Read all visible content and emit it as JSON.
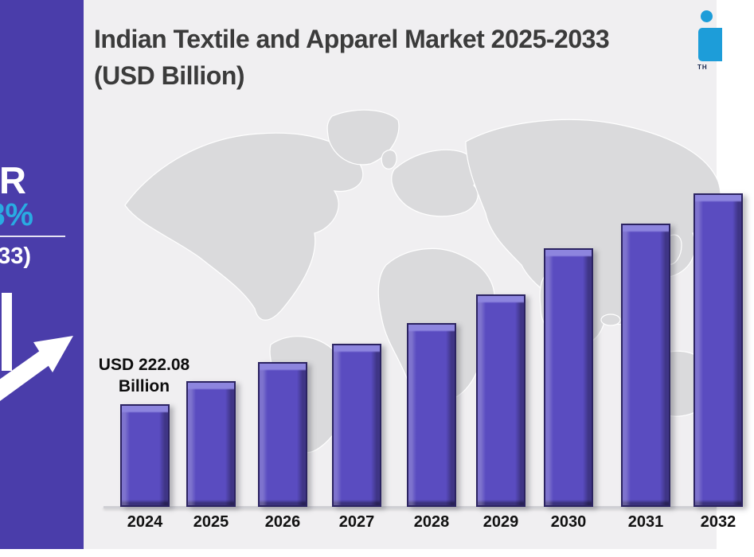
{
  "header": {
    "title": "Indian Textile and Apparel Market 2025-2033 (USD Billion)"
  },
  "sidebar": {
    "bg_color": "#4a3daa",
    "cagr_text_fragment": "R",
    "cagr_value_fragment": "8%",
    "cagr_value_color": "#29abe2",
    "period_fragment": "33)",
    "growth_arrow_color": "#ffffff"
  },
  "logo": {
    "color": "#1d9dd9",
    "text_fragment": "TH"
  },
  "annotation_2024": "USD 222.08 Billion",
  "chart_data": {
    "type": "bar",
    "title": "Indian Textile and Apparel Market 2025-2033 (USD Billion)",
    "unit": "USD Billion",
    "categories": [
      "2024",
      "2025",
      "2026",
      "2027",
      "2028",
      "2029",
      "2030",
      "2031",
      "2032"
    ],
    "values": [
      222.08,
      272,
      313,
      353,
      398,
      460,
      560,
      613,
      678
    ],
    "data_labels": {
      "2024": "USD 222.08 Billion"
    },
    "xlabel": "",
    "ylabel": "",
    "ylim": [
      0,
      700
    ],
    "grid": false,
    "legend": false,
    "bar_color": "#5a4cc0",
    "background_color": "#f0eff1",
    "map_color": "#dadadc",
    "last_bar_clipped_at_right_edge": true
  }
}
